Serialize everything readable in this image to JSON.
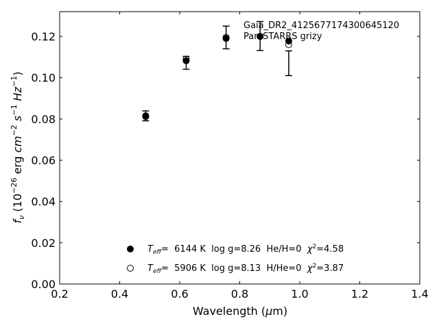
{
  "chart_data": {
    "type": "scatter",
    "xlabel": "Wavelength (μm)",
    "ylabel": "f_ν (10^-26 erg cm^-2 s^-1 Hz^-1)",
    "xlim": [
      0.2,
      1.4
    ],
    "ylim": [
      0.0,
      0.132
    ],
    "xticks": [
      "0.2",
      "0.4",
      "0.6",
      "0.8",
      "1.0",
      "1.2",
      "1.4"
    ],
    "yticks": [
      "0.00",
      "0.02",
      "0.04",
      "0.06",
      "0.08",
      "0.10",
      "0.12"
    ],
    "xtick_values": [
      0.2,
      0.4,
      0.6,
      0.8,
      1.0,
      1.2,
      1.4
    ],
    "ytick_values": [
      0.0,
      0.02,
      0.04,
      0.06,
      0.08,
      0.1,
      0.12
    ],
    "header_lines": [
      "Gaia_DR2_4125677174300645120",
      "Pan-STARRS grizy"
    ],
    "observed": {
      "x": [
        0.4866,
        0.6215,
        0.7545,
        0.8679,
        0.9633
      ],
      "y": [
        0.0815,
        0.1072,
        0.1195,
        0.1202,
        0.107
      ],
      "err": [
        0.0024,
        0.0031,
        0.0055,
        0.007,
        0.006
      ]
    },
    "series": [
      {
        "name": "T_eff= 6144 K log g=8.26 He/H=0 χ²=4.58",
        "marker": "filled",
        "x": [
          0.4866,
          0.6215,
          0.7545,
          0.8679,
          0.9633
        ],
        "y": [
          0.0815,
          0.1082,
          0.119,
          0.12,
          0.1178
        ]
      },
      {
        "name": "T_eff= 5906 K log g=8.13 H/He=0 χ²=3.87",
        "marker": "open",
        "x": [
          0.4866,
          0.6215,
          0.7545,
          0.8679,
          0.9633
        ],
        "y": [
          0.0811,
          0.109,
          0.1195,
          0.12,
          0.116
        ]
      }
    ],
    "legend_entries": [
      {
        "teff_label": "T",
        "teff_sub": "eff",
        "text": "=  6144 K  log g=8.26  He/H=0  ",
        "chi_label": "χ",
        "chi_sup": "2",
        "chi_value": "=4.58"
      },
      {
        "teff_label": "T",
        "teff_sub": "eff",
        "text": "=  5906 K  log g=8.13  H/He=0  ",
        "chi_label": "χ",
        "chi_sup": "2",
        "chi_value": "=3.87"
      }
    ],
    "grid": false,
    "legend_position": "bottom-center"
  }
}
